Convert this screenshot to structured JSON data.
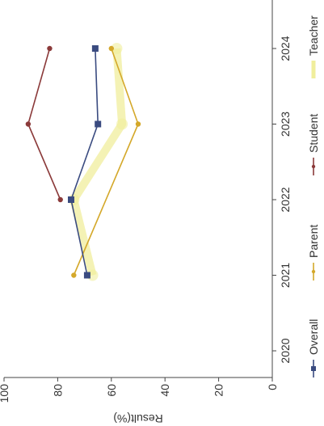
{
  "chart_data": {
    "type": "line",
    "orientation": "rotated-90-ccw",
    "title": "",
    "xlabel": "",
    "ylabel": "Result(%)",
    "x": [
      "2020",
      "2021",
      "2022",
      "2023",
      "2024"
    ],
    "ylim": [
      0,
      100
    ],
    "yticks": [
      0,
      20,
      40,
      60,
      80,
      100
    ],
    "grid": false,
    "legend_position": "bottom",
    "series": [
      {
        "name": "Overall",
        "color": "#3a4b80",
        "marker": "square",
        "values": [
          null,
          69,
          75,
          65,
          66
        ]
      },
      {
        "name": "Parent",
        "color": "#d4a82a",
        "marker": "diamond",
        "values": [
          null,
          74,
          null,
          50,
          60
        ]
      },
      {
        "name": "Student",
        "color": "#8b3a3a",
        "marker": "diamond",
        "values": [
          null,
          null,
          79,
          91,
          83
        ]
      },
      {
        "name": "Teacher",
        "color": "#f0ee9c",
        "marker": "circle",
        "values": [
          null,
          67,
          74,
          56,
          58
        ]
      }
    ]
  }
}
